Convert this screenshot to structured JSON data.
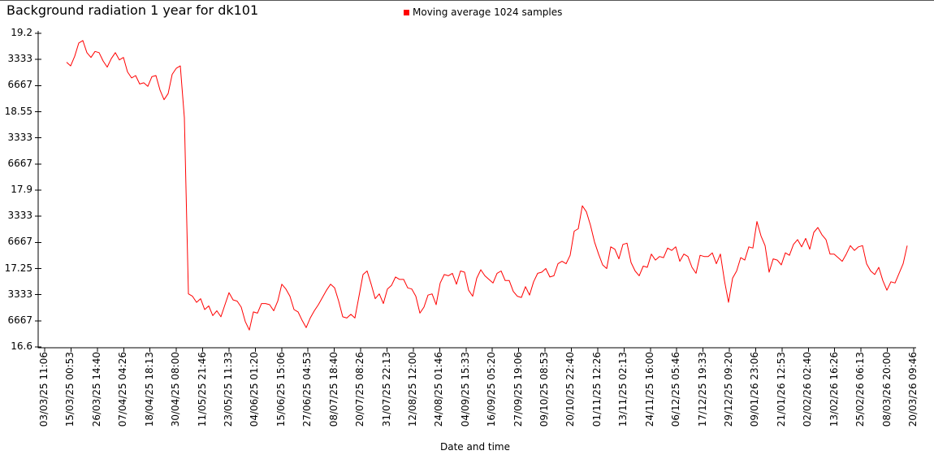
{
  "header": {
    "title": "Background radiation 1 year for dk101"
  },
  "legend": {
    "marker_color": "#ff0000",
    "label": "Moving average 1024 samples"
  },
  "chart_data": {
    "type": "line",
    "title": "Background radiation 1 year for dk101",
    "xlabel": "Date and time",
    "ylabel": "",
    "grid": false,
    "legend_position": "top-center",
    "x_axis": {
      "start": "03/03/25 11:06",
      "end": "20/03/26 09:46",
      "tick_labels": [
        "03/03/25 11:06",
        "15/03/25 00:53",
        "26/03/25 14:40",
        "07/04/25 04:26",
        "18/04/25 18:13",
        "30/04/25 08:00",
        "11/05/25 21:46",
        "23/05/25 11:33",
        "04/06/25 01:20",
        "15/06/25 15:06",
        "27/06/25 04:53",
        "08/07/25 18:40",
        "20/07/25 08:26",
        "31/07/25 22:13",
        "12/08/25 12:00",
        "24/08/25 01:46",
        "04/09/25 15:33",
        "16/09/25 05:20",
        "27/09/25 19:06",
        "09/10/25 08:53",
        "20/10/25 22:40",
        "01/11/25 12:26",
        "13/11/25 02:13",
        "24/11/25 16:00",
        "06/12/25 05:46",
        "17/12/25 19:33",
        "29/12/25 09:20",
        "09/01/26 23:06",
        "21/01/26 12:53",
        "02/02/26 02:40",
        "13/02/26 16:26",
        "25/02/26 06:13",
        "08/03/26 20:00",
        "20/03/26 09:46"
      ]
    },
    "y_axis": {
      "min": 16.6,
      "max": 19.2,
      "tick_step": 0.216667,
      "tick_values": [
        19.2,
        18.983333,
        18.766667,
        18.55,
        18.333333,
        18.116667,
        17.9,
        17.683333,
        17.466667,
        17.25,
        17.033333,
        16.816667,
        16.6
      ],
      "tick_labels_visible": [
        "19.2",
        "3333",
        "6667",
        "18.55",
        "3333",
        "6667",
        "17.9",
        "3333",
        "6667",
        "17.25",
        "3333",
        "6667",
        "16.6"
      ]
    },
    "series": [
      {
        "name": "Moving average 1024 samples",
        "color": "#ff0000",
        "x_start_frac": 0.02523,
        "x_end_frac": 0.99252,
        "values": [
          18.96,
          18.93,
          19.01,
          19.12,
          19.14,
          19.04,
          19.0,
          19.05,
          19.04,
          18.97,
          18.92,
          18.99,
          19.04,
          18.98,
          19.0,
          18.88,
          18.83,
          18.85,
          18.78,
          18.79,
          18.76,
          18.84,
          18.85,
          18.73,
          18.65,
          18.7,
          18.86,
          18.91,
          18.93,
          18.5,
          17.04,
          17.02,
          16.97,
          17.0,
          16.91,
          16.94,
          16.86,
          16.9,
          16.85,
          16.95,
          17.05,
          16.99,
          16.98,
          16.93,
          16.81,
          16.74,
          16.89,
          16.88,
          16.96,
          16.96,
          16.95,
          16.9,
          16.98,
          17.12,
          17.08,
          17.02,
          16.91,
          16.89,
          16.82,
          16.76,
          16.84,
          16.9,
          16.95,
          17.01,
          17.07,
          17.12,
          17.09,
          16.98,
          16.85,
          16.84,
          16.87,
          16.84,
          17.02,
          17.2,
          17.23,
          17.12,
          17.0,
          17.04,
          16.96,
          17.08,
          17.11,
          17.18,
          17.16,
          17.16,
          17.09,
          17.08,
          17.02,
          16.88,
          16.93,
          17.03,
          17.04,
          16.95,
          17.13,
          17.2,
          17.19,
          17.21,
          17.12,
          17.23,
          17.22,
          17.07,
          17.02,
          17.17,
          17.24,
          17.19,
          17.16,
          17.13,
          17.21,
          17.23,
          17.15,
          17.15,
          17.06,
          17.02,
          17.01,
          17.1,
          17.03,
          17.14,
          17.21,
          17.22,
          17.25,
          17.18,
          17.19,
          17.29,
          17.31,
          17.29,
          17.36,
          17.56,
          17.58,
          17.77,
          17.72,
          17.61,
          17.47,
          17.37,
          17.28,
          17.25,
          17.43,
          17.41,
          17.33,
          17.45,
          17.46,
          17.3,
          17.23,
          17.19,
          17.27,
          17.26,
          17.37,
          17.32,
          17.35,
          17.34,
          17.42,
          17.4,
          17.43,
          17.31,
          17.37,
          17.35,
          17.26,
          17.21,
          17.36,
          17.35,
          17.35,
          17.38,
          17.29,
          17.37,
          17.15,
          16.97,
          17.17,
          17.23,
          17.34,
          17.32,
          17.43,
          17.42,
          17.64,
          17.52,
          17.44,
          17.22,
          17.33,
          17.32,
          17.28,
          17.38,
          17.36,
          17.45,
          17.49,
          17.43,
          17.5,
          17.41,
          17.55,
          17.59,
          17.53,
          17.49,
          17.37,
          17.37,
          17.34,
          17.31,
          17.37,
          17.44,
          17.4,
          17.43,
          17.44,
          17.29,
          17.23,
          17.2,
          17.26,
          17.15,
          17.07,
          17.14,
          17.13,
          17.21,
          17.29,
          17.44
        ]
      }
    ]
  }
}
